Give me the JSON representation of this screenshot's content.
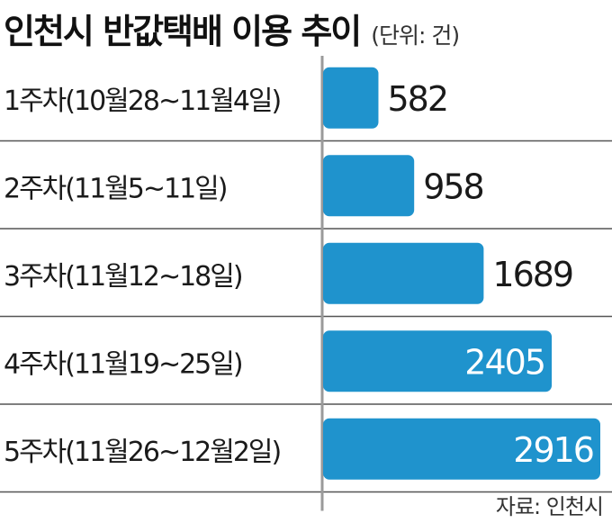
{
  "title": "인천시 반값택배 이용 추이",
  "unit": "(단위: 건)",
  "source": "자료: 인천시",
  "colors": {
    "bar": "#1f93cd",
    "divider": "#555555",
    "axis": "#9a9a9a",
    "text": "#1a1a1a",
    "inner_label": "#ffffff"
  },
  "chart_data": {
    "type": "bar",
    "orientation": "horizontal",
    "categories": [
      "1주차(10월28~11월4일)",
      "2주차(11월5~11일)",
      "3주차(11월12~18일)",
      "4주차(11월19~25일)",
      "5주차(11월26~12월2일)"
    ],
    "values": [
      582,
      958,
      1689,
      2405,
      2916
    ],
    "data_labels": [
      "582",
      "958",
      "1689",
      "2405",
      "2916"
    ],
    "title": "인천시 반값택배 이용 추이",
    "unit": "(단위: 건)",
    "xlim": [
      0,
      2916
    ],
    "grid": false
  }
}
